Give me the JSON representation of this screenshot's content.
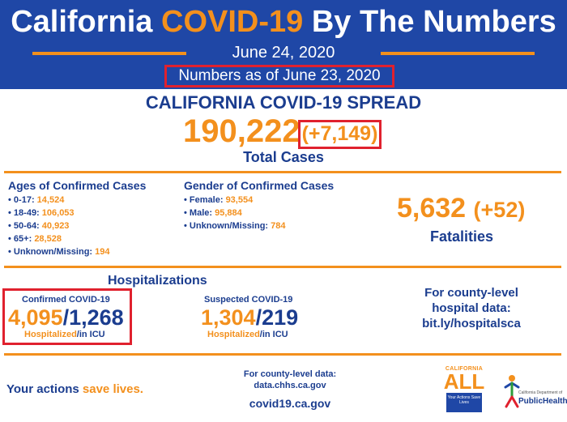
{
  "header": {
    "title_prefix": "California ",
    "title_accent": "COVID-19",
    "title_suffix": " By The Numbers",
    "date": "June 24, 2020",
    "as_of": "Numbers as of June 23, 2020"
  },
  "spread": {
    "title": "CALIFORNIA COVID-19 SPREAD",
    "total": "190,222",
    "delta": "(+7,149)",
    "label": "Total Cases"
  },
  "ages": {
    "title": "Ages of Confirmed Cases",
    "items": [
      {
        "label": "0-17: ",
        "value": "14,524"
      },
      {
        "label": "18-49: ",
        "value": "106,053"
      },
      {
        "label": "50-64: ",
        "value": "40,923"
      },
      {
        "label": "65+: ",
        "value": "28,528"
      },
      {
        "label": "Unknown/Missing: ",
        "value": "194"
      }
    ]
  },
  "gender": {
    "title": "Gender of Confirmed Cases",
    "items": [
      {
        "label": "Female: ",
        "value": "93,554"
      },
      {
        "label": "Male: ",
        "value": "95,884"
      },
      {
        "label": "Unknown/Missing: ",
        "value": "784"
      }
    ]
  },
  "fatalities": {
    "number": "5,632",
    "delta": "(+52)",
    "label": "Fatalities"
  },
  "hospitalizations": {
    "title": "Hospitalizations",
    "confirmed": {
      "label": "Confirmed COVID-19",
      "hospitalized": "4,095",
      "icu": "1,268",
      "hospitalized_label": "Hospitalized",
      "icu_label": "/in ICU"
    },
    "suspected": {
      "label": "Suspected COVID-19",
      "hospitalized": "1,304",
      "icu": "219",
      "hospitalized_label": "Hospitalized",
      "icu_label": "/in ICU"
    },
    "county_line1": "For county-level",
    "county_line2": "hospital data:",
    "county_link": "bit.ly/hospitalsca"
  },
  "footer": {
    "slogan_prefix": "Your actions ",
    "slogan_accent": "save lives.",
    "county_data_line1": "For county-level data:",
    "county_data_line2": "data.chhs.ca.gov",
    "site": "covid19.ca.gov"
  },
  "logos": {
    "ca_all_top": "CALIFORNIA",
    "ca_all_word": "ALL",
    "ca_all_box": "Your Actions Save Lives",
    "cdph_small": "California Department of",
    "cdph_big": "PublicHealth"
  },
  "colors": {
    "brand_blue": "#1f47a6",
    "text_blue": "#1b3d8f",
    "accent_orange": "#f3901d",
    "highlight_red": "#e0212e"
  }
}
